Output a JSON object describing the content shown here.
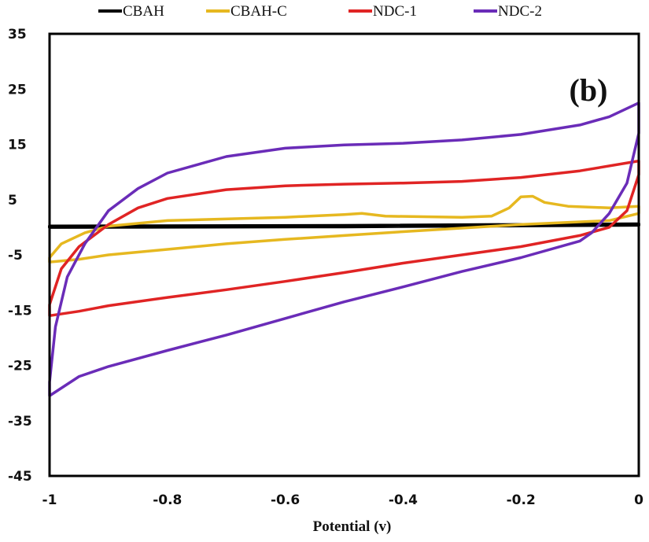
{
  "chart_data": {
    "type": "line",
    "panel_label": "(b)",
    "xlabel": "Potential (v)",
    "ylabel": "",
    "xlim": [
      -1,
      0
    ],
    "ylim": [
      -45,
      35
    ],
    "x_ticks": [
      "-1",
      "-0.8",
      "-0.6",
      "-0.4",
      "-0.2",
      "0"
    ],
    "y_ticks": [
      "35",
      "25",
      "15",
      "5",
      "-5",
      "-15",
      "-25",
      "-35",
      "-45"
    ],
    "grid": false,
    "legend_position": "top",
    "series": [
      {
        "name": "CBAH",
        "color": "#000000",
        "points": [
          [
            -1,
            0.2
          ],
          [
            -0.5,
            0.3
          ],
          [
            0,
            0.6
          ],
          [
            0,
            0.4
          ],
          [
            -0.5,
            0.1
          ],
          [
            -1,
            0.0
          ]
        ]
      },
      {
        "name": "CBAH-C",
        "color": "#e6b820",
        "points": [
          [
            -1,
            -5.5
          ],
          [
            -0.98,
            -3.0
          ],
          [
            -0.94,
            -1.0
          ],
          [
            -0.9,
            0.2
          ],
          [
            -0.8,
            1.2
          ],
          [
            -0.6,
            1.8
          ],
          [
            -0.5,
            2.3
          ],
          [
            -0.47,
            2.5
          ],
          [
            -0.43,
            2.0
          ],
          [
            -0.3,
            1.8
          ],
          [
            -0.25,
            2.0
          ],
          [
            -0.22,
            3.5
          ],
          [
            -0.2,
            5.5
          ],
          [
            -0.18,
            5.6
          ],
          [
            -0.16,
            4.5
          ],
          [
            -0.12,
            3.8
          ],
          [
            -0.05,
            3.5
          ],
          [
            0,
            3.8
          ],
          [
            0,
            2.5
          ],
          [
            -0.05,
            1.2
          ],
          [
            -0.2,
            0.5
          ],
          [
            -0.4,
            -0.8
          ],
          [
            -0.5,
            -1.5
          ],
          [
            -0.6,
            -2.2
          ],
          [
            -0.7,
            -3.0
          ],
          [
            -0.8,
            -4.0
          ],
          [
            -0.9,
            -5.0
          ],
          [
            -0.95,
            -5.8
          ],
          [
            -1,
            -6.3
          ]
        ]
      },
      {
        "name": "NDC-1",
        "color": "#e02424",
        "points": [
          [
            -1,
            -14.0
          ],
          [
            -0.98,
            -7.5
          ],
          [
            -0.95,
            -3.5
          ],
          [
            -0.9,
            0.5
          ],
          [
            -0.85,
            3.5
          ],
          [
            -0.8,
            5.2
          ],
          [
            -0.7,
            6.8
          ],
          [
            -0.6,
            7.5
          ],
          [
            -0.5,
            7.8
          ],
          [
            -0.4,
            8.0
          ],
          [
            -0.3,
            8.3
          ],
          [
            -0.2,
            9.0
          ],
          [
            -0.1,
            10.2
          ],
          [
            0,
            12.0
          ],
          [
            0,
            9.5
          ],
          [
            -0.02,
            3.0
          ],
          [
            -0.05,
            0.0
          ],
          [
            -0.1,
            -1.5
          ],
          [
            -0.2,
            -3.5
          ],
          [
            -0.3,
            -5.0
          ],
          [
            -0.4,
            -6.5
          ],
          [
            -0.5,
            -8.2
          ],
          [
            -0.6,
            -9.8
          ],
          [
            -0.7,
            -11.3
          ],
          [
            -0.8,
            -12.7
          ],
          [
            -0.9,
            -14.2
          ],
          [
            -0.95,
            -15.2
          ],
          [
            -1,
            -16.0
          ]
        ]
      },
      {
        "name": "NDC-2",
        "color": "#6a2cb8",
        "points": [
          [
            -1,
            -28.0
          ],
          [
            -0.99,
            -18.0
          ],
          [
            -0.97,
            -9.0
          ],
          [
            -0.94,
            -3.0
          ],
          [
            -0.9,
            3.0
          ],
          [
            -0.85,
            7.0
          ],
          [
            -0.8,
            9.8
          ],
          [
            -0.7,
            12.8
          ],
          [
            -0.6,
            14.3
          ],
          [
            -0.5,
            14.9
          ],
          [
            -0.4,
            15.2
          ],
          [
            -0.3,
            15.8
          ],
          [
            -0.2,
            16.8
          ],
          [
            -0.1,
            18.5
          ],
          [
            -0.05,
            20.0
          ],
          [
            0,
            22.5
          ],
          [
            0,
            17.0
          ],
          [
            -0.02,
            8.0
          ],
          [
            -0.05,
            2.5
          ],
          [
            -0.08,
            -1.0
          ],
          [
            -0.1,
            -2.5
          ],
          [
            -0.2,
            -5.5
          ],
          [
            -0.3,
            -8.0
          ],
          [
            -0.4,
            -10.8
          ],
          [
            -0.5,
            -13.5
          ],
          [
            -0.6,
            -16.5
          ],
          [
            -0.7,
            -19.5
          ],
          [
            -0.8,
            -22.3
          ],
          [
            -0.9,
            -25.2
          ],
          [
            -0.95,
            -27.0
          ],
          [
            -1,
            -30.5
          ]
        ]
      }
    ]
  }
}
